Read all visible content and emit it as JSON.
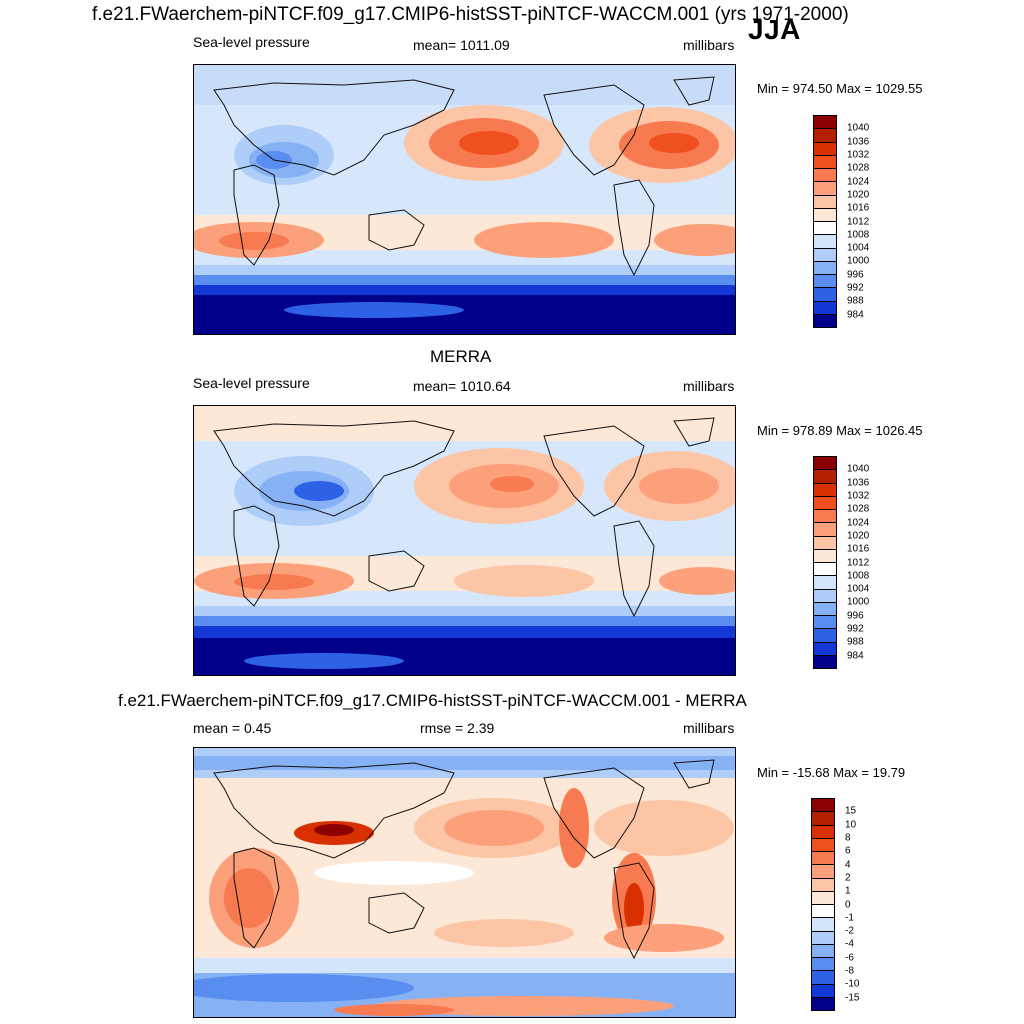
{
  "figure": {
    "main_title": "f.e21.FWaerchem-piNTCF.f09_g17.CMIP6-histSST-piNTCF-WACCM.001 (yrs 1971-2000)",
    "season": "JJA"
  },
  "panels": [
    {
      "id": "model",
      "heading": "",
      "left_label": "Sea-level pressure",
      "center_label": "mean= 1011.09",
      "right_label": "millibars",
      "minmax": "Min = 974.50 Max = 1029.55",
      "colorbar": {
        "ticks": [
          "1040",
          "1036",
          "1032",
          "1028",
          "1024",
          "1020",
          "1016",
          "1012",
          "1008",
          "1004",
          "1000",
          "996",
          "992",
          "988",
          "984"
        ],
        "colors": [
          "#8b0000",
          "#b22000",
          "#d83000",
          "#f0501f",
          "#f77a50",
          "#fba07a",
          "#fcc5a6",
          "#fde7d6",
          "#ffffff",
          "#d3e5fb",
          "#aecdf8",
          "#86b1f5",
          "#5a8df0",
          "#2e62e6",
          "#1438d6",
          "#00008b"
        ]
      }
    },
    {
      "id": "obs",
      "heading": "MERRA",
      "left_label": "Sea-level pressure",
      "center_label": "mean= 1010.64",
      "right_label": "millibars",
      "minmax": "Min = 978.89 Max = 1026.45",
      "colorbar": {
        "ticks": [
          "1040",
          "1036",
          "1032",
          "1028",
          "1024",
          "1020",
          "1016",
          "1012",
          "1008",
          "1004",
          "1000",
          "996",
          "992",
          "988",
          "984"
        ],
        "colors": [
          "#8b0000",
          "#b22000",
          "#d83000",
          "#f0501f",
          "#f77a50",
          "#fba07a",
          "#fcc5a6",
          "#fde7d6",
          "#ffffff",
          "#d3e5fb",
          "#aecdf8",
          "#86b1f5",
          "#5a8df0",
          "#2e62e6",
          "#1438d6",
          "#00008b"
        ]
      }
    },
    {
      "id": "diff",
      "heading": "f.e21.FWaerchem-piNTCF.f09_g17.CMIP6-histSST-piNTCF-WACCM.001 - MERRA",
      "left_label": "mean =   0.45",
      "center_label": "rmse =   2.39",
      "right_label": "millibars",
      "minmax": "Min = -15.68 Max =  19.79",
      "colorbar": {
        "ticks": [
          "15",
          "10",
          "8",
          "6",
          "4",
          "2",
          "1",
          "0",
          "-1",
          "-2",
          "-4",
          "-6",
          "-8",
          "-10",
          "-15"
        ],
        "colors": [
          "#8b0000",
          "#b22000",
          "#d83000",
          "#f0501f",
          "#f77a50",
          "#fba07a",
          "#fcc5a6",
          "#fde7d6",
          "#ffffff",
          "#d3e5fb",
          "#aecdf8",
          "#86b1f5",
          "#5a8df0",
          "#2e62e6",
          "#1438d6",
          "#00008b"
        ]
      }
    }
  ],
  "colors": {
    "land_outline": "#111111",
    "ocean_neutral": "#d6e7fb",
    "deep_low": "#0a1a9e",
    "high": "#f2603a"
  }
}
